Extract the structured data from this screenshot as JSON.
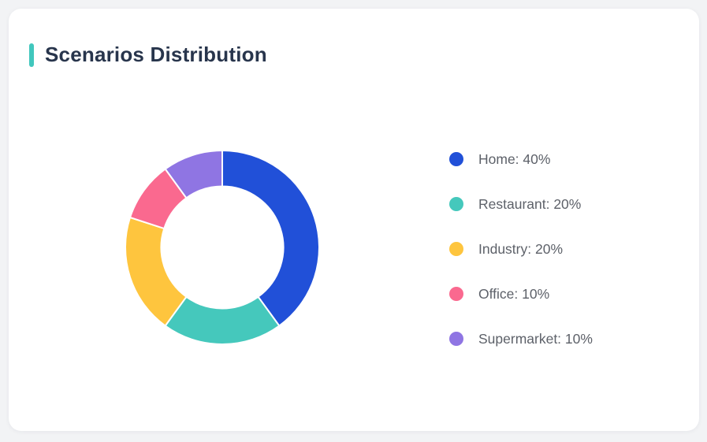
{
  "card": {
    "title": "Scenarios Distribution",
    "accent_color": "#41c7bd"
  },
  "chart_data": {
    "type": "pie",
    "donut": true,
    "title": "Scenarios Distribution",
    "categories": [
      "Home",
      "Restaurant",
      "Industry",
      "Office",
      "Supermarket"
    ],
    "values": [
      40,
      20,
      20,
      10,
      10
    ],
    "unit": "%",
    "colors": [
      "#2150d8",
      "#45c8bc",
      "#fec53e",
      "#fa698f",
      "#8f75e3"
    ],
    "legend_position": "right",
    "legend_labels": [
      "Home: 40%",
      "Restaurant: 20%",
      "Industry: 20%",
      "Office: 10%",
      "Supermarket: 10%"
    ]
  }
}
